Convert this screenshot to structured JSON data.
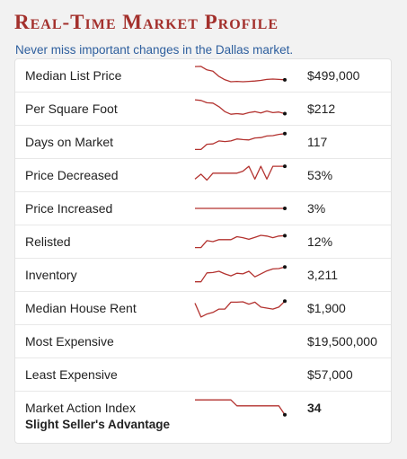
{
  "header": {
    "title": "Real-Time Market Profile",
    "subtitle": "Never miss important changes in the Dallas market."
  },
  "colors": {
    "title": "#a3302c",
    "subtitle": "#2e5f9e",
    "sparkline": "#b3322f",
    "endpoint": "#111111"
  },
  "rows": [
    {
      "label": "Median List Price",
      "value": "$499,000",
      "trend": [
        0.95,
        0.96,
        0.78,
        0.72,
        0.45,
        0.28,
        0.18,
        0.2,
        0.18,
        0.2,
        0.22,
        0.25,
        0.3,
        0.32,
        0.3,
        0.28
      ]
    },
    {
      "label": "Per Square Foot",
      "value": "$212",
      "trend": [
        0.95,
        0.92,
        0.8,
        0.78,
        0.6,
        0.35,
        0.22,
        0.25,
        0.22,
        0.3,
        0.35,
        0.28,
        0.38,
        0.3,
        0.33,
        0.25
      ]
    },
    {
      "label": "Days on Market",
      "value": "117",
      "trend": [
        0.12,
        0.12,
        0.38,
        0.4,
        0.55,
        0.52,
        0.55,
        0.65,
        0.62,
        0.6,
        0.7,
        0.72,
        0.8,
        0.82,
        0.88,
        0.92
      ]
    },
    {
      "label": "Price Decreased",
      "value": "53%",
      "trend": [
        0.3,
        0.55,
        0.25,
        0.6,
        0.6,
        0.6,
        0.6,
        0.6,
        0.7,
        0.95,
        0.3,
        0.95,
        0.3,
        0.95,
        0.95,
        0.95
      ]
    },
    {
      "label": "Price Increased",
      "value": "3%",
      "trend": [
        0.5,
        0.5,
        0.5,
        0.5,
        0.5,
        0.5,
        0.5,
        0.5,
        0.5,
        0.5,
        0.5,
        0.5,
        0.5,
        0.5,
        0.5,
        0.5
      ]
    },
    {
      "label": "Relisted",
      "value": "12%",
      "trend": [
        0.2,
        0.2,
        0.55,
        0.5,
        0.6,
        0.6,
        0.6,
        0.75,
        0.7,
        0.62,
        0.72,
        0.82,
        0.78,
        0.7,
        0.78,
        0.8
      ]
    },
    {
      "label": "Inventory",
      "value": "3,211",
      "trend": [
        0.15,
        0.15,
        0.6,
        0.62,
        0.68,
        0.55,
        0.45,
        0.58,
        0.55,
        0.68,
        0.4,
        0.55,
        0.7,
        0.8,
        0.82,
        0.9
      ]
    },
    {
      "label": "Median House Rent",
      "value": "$1,900",
      "trend": [
        0.75,
        0.05,
        0.2,
        0.28,
        0.45,
        0.45,
        0.8,
        0.8,
        0.82,
        0.7,
        0.8,
        0.55,
        0.5,
        0.45,
        0.55,
        0.85
      ]
    },
    {
      "label": "Most Expensive",
      "value": "$19,500,000"
    },
    {
      "label": "Least Expensive",
      "value": "$57,000"
    },
    {
      "label": "Market Action Index",
      "sublabel": "Slight Seller's Advantage",
      "value": "34",
      "trend": [
        0.9,
        0.9,
        0.9,
        0.9,
        0.9,
        0.9,
        0.9,
        0.6,
        0.6,
        0.6,
        0.6,
        0.6,
        0.6,
        0.6,
        0.6,
        0.15
      ]
    }
  ]
}
